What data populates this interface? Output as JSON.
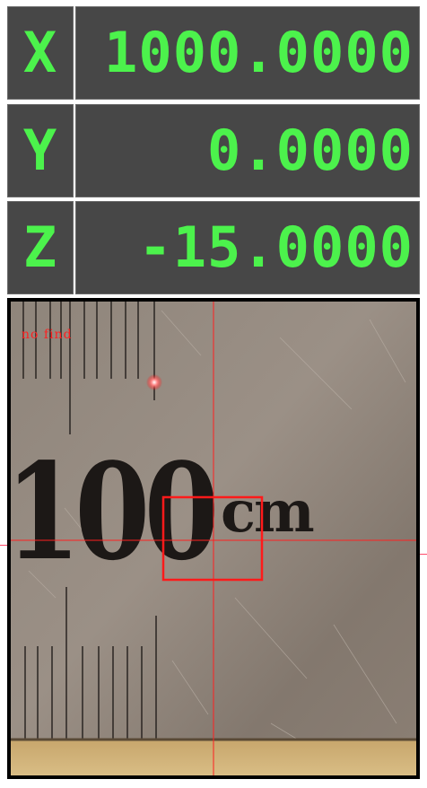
{
  "dro": {
    "x": {
      "axis": "X",
      "value": "1000.0000"
    },
    "y": {
      "axis": "Y",
      "value": "0.0000"
    },
    "z": {
      "axis": "Z",
      "value": "-15.0000"
    }
  },
  "camera": {
    "status": "no find",
    "ruler_number": "100",
    "ruler_unit": "cm"
  },
  "colors": {
    "dro_background": "#474747",
    "dro_text": "#4cf24c",
    "crosshair": "#ff2020",
    "frame": "#000000"
  }
}
